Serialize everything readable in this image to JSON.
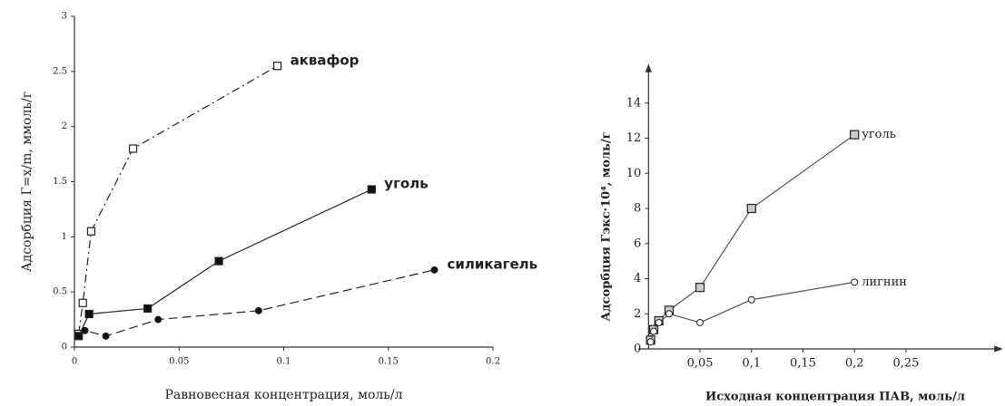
{
  "chart_data": [
    {
      "type": "line",
      "xlabel": "Равновесная концентрация, моль/л",
      "ylabel": "Адсорбция Г=x/m, ммоль/г",
      "xlim": [
        0,
        0.2
      ],
      "xticks": [
        0,
        0.05,
        0.1,
        0.15,
        0.2
      ],
      "ylim": [
        0,
        3
      ],
      "yticks": [
        0,
        0.5,
        1,
        1.5,
        2,
        2.5,
        3
      ],
      "series": [
        {
          "name": "аквафор",
          "color": "#222222",
          "marker": "square-open",
          "dash": "9 4 2 4",
          "x": [
            0.002,
            0.004,
            0.008,
            0.028,
            0.097
          ],
          "values": [
            0.12,
            0.4,
            1.05,
            1.8,
            2.55
          ]
        },
        {
          "name": "уголь",
          "color": "#222222",
          "marker": "square",
          "dash": "none",
          "x": [
            0.002,
            0.007,
            0.035,
            0.069,
            0.142
          ],
          "values": [
            0.1,
            0.3,
            0.35,
            0.78,
            1.43
          ]
        },
        {
          "name": "силикагель",
          "color": "#222222",
          "marker": "circle",
          "dash": "10 5",
          "x": [
            0.002,
            0.005,
            0.015,
            0.04,
            0.088,
            0.172
          ],
          "values": [
            0.1,
            0.15,
            0.1,
            0.25,
            0.33,
            0.7
          ]
        }
      ]
    },
    {
      "type": "line",
      "xlabel": "Исходная концентрация ПАВ, моль/л",
      "ylabel": "Адсорбция Гэкс·10⁴, моль/г",
      "xlim": [
        -0.01,
        0.34
      ],
      "xticks": [
        {
          "value": 0.05,
          "label": "0,05"
        },
        {
          "value": 0.1,
          "label": "0,1"
        },
        {
          "value": 0.15,
          "label": "0,15"
        },
        {
          "value": 0.2,
          "label": "0,2"
        },
        {
          "value": 0.25,
          "label": "0,25"
        }
      ],
      "ylim": [
        0,
        16
      ],
      "yticks": [
        0,
        2,
        4,
        6,
        8,
        10,
        12,
        14
      ],
      "series": [
        {
          "name": "уголь",
          "color": "#555555",
          "marker": "square-gray",
          "dash": "none",
          "x": [
            0.002,
            0.005,
            0.01,
            0.02,
            0.05,
            0.1,
            0.2
          ],
          "values": [
            0.5,
            1.1,
            1.6,
            2.2,
            3.5,
            8,
            12.2
          ]
        },
        {
          "name": "лигнин",
          "color": "#555555",
          "marker": "circle-open",
          "dash": "none",
          "x": [
            0.002,
            0.005,
            0.01,
            0.02,
            0.05,
            0.1,
            0.2
          ],
          "values": [
            0.4,
            1,
            1.5,
            2,
            1.5,
            2.8,
            3.8
          ]
        }
      ]
    }
  ]
}
